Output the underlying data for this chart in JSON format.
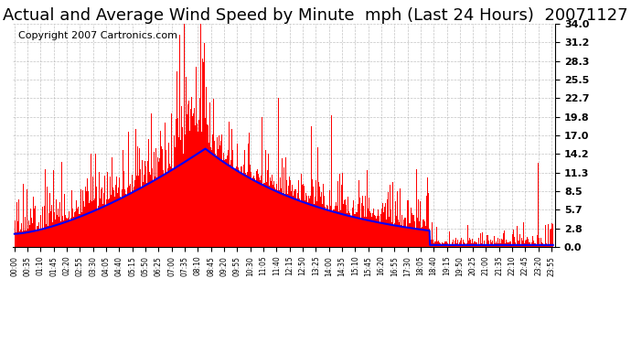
{
  "title": "Actual and Average Wind Speed by Minute  mph (Last 24 Hours)  20071127",
  "copyright": "Copyright 2007 Cartronics.com",
  "yticks": [
    0.0,
    2.8,
    5.7,
    8.5,
    11.3,
    14.2,
    17.0,
    19.8,
    22.7,
    25.5,
    28.3,
    31.2,
    34.0
  ],
  "ymax": 34.0,
  "ymin": 0.0,
  "bg_color": "#ffffff",
  "plot_bg_color": "#ffffff",
  "grid_color": "#aaaaaa",
  "actual_color": "#ff0000",
  "avg_color": "#0000ff",
  "title_fontsize": 13,
  "copyright_fontsize": 8
}
